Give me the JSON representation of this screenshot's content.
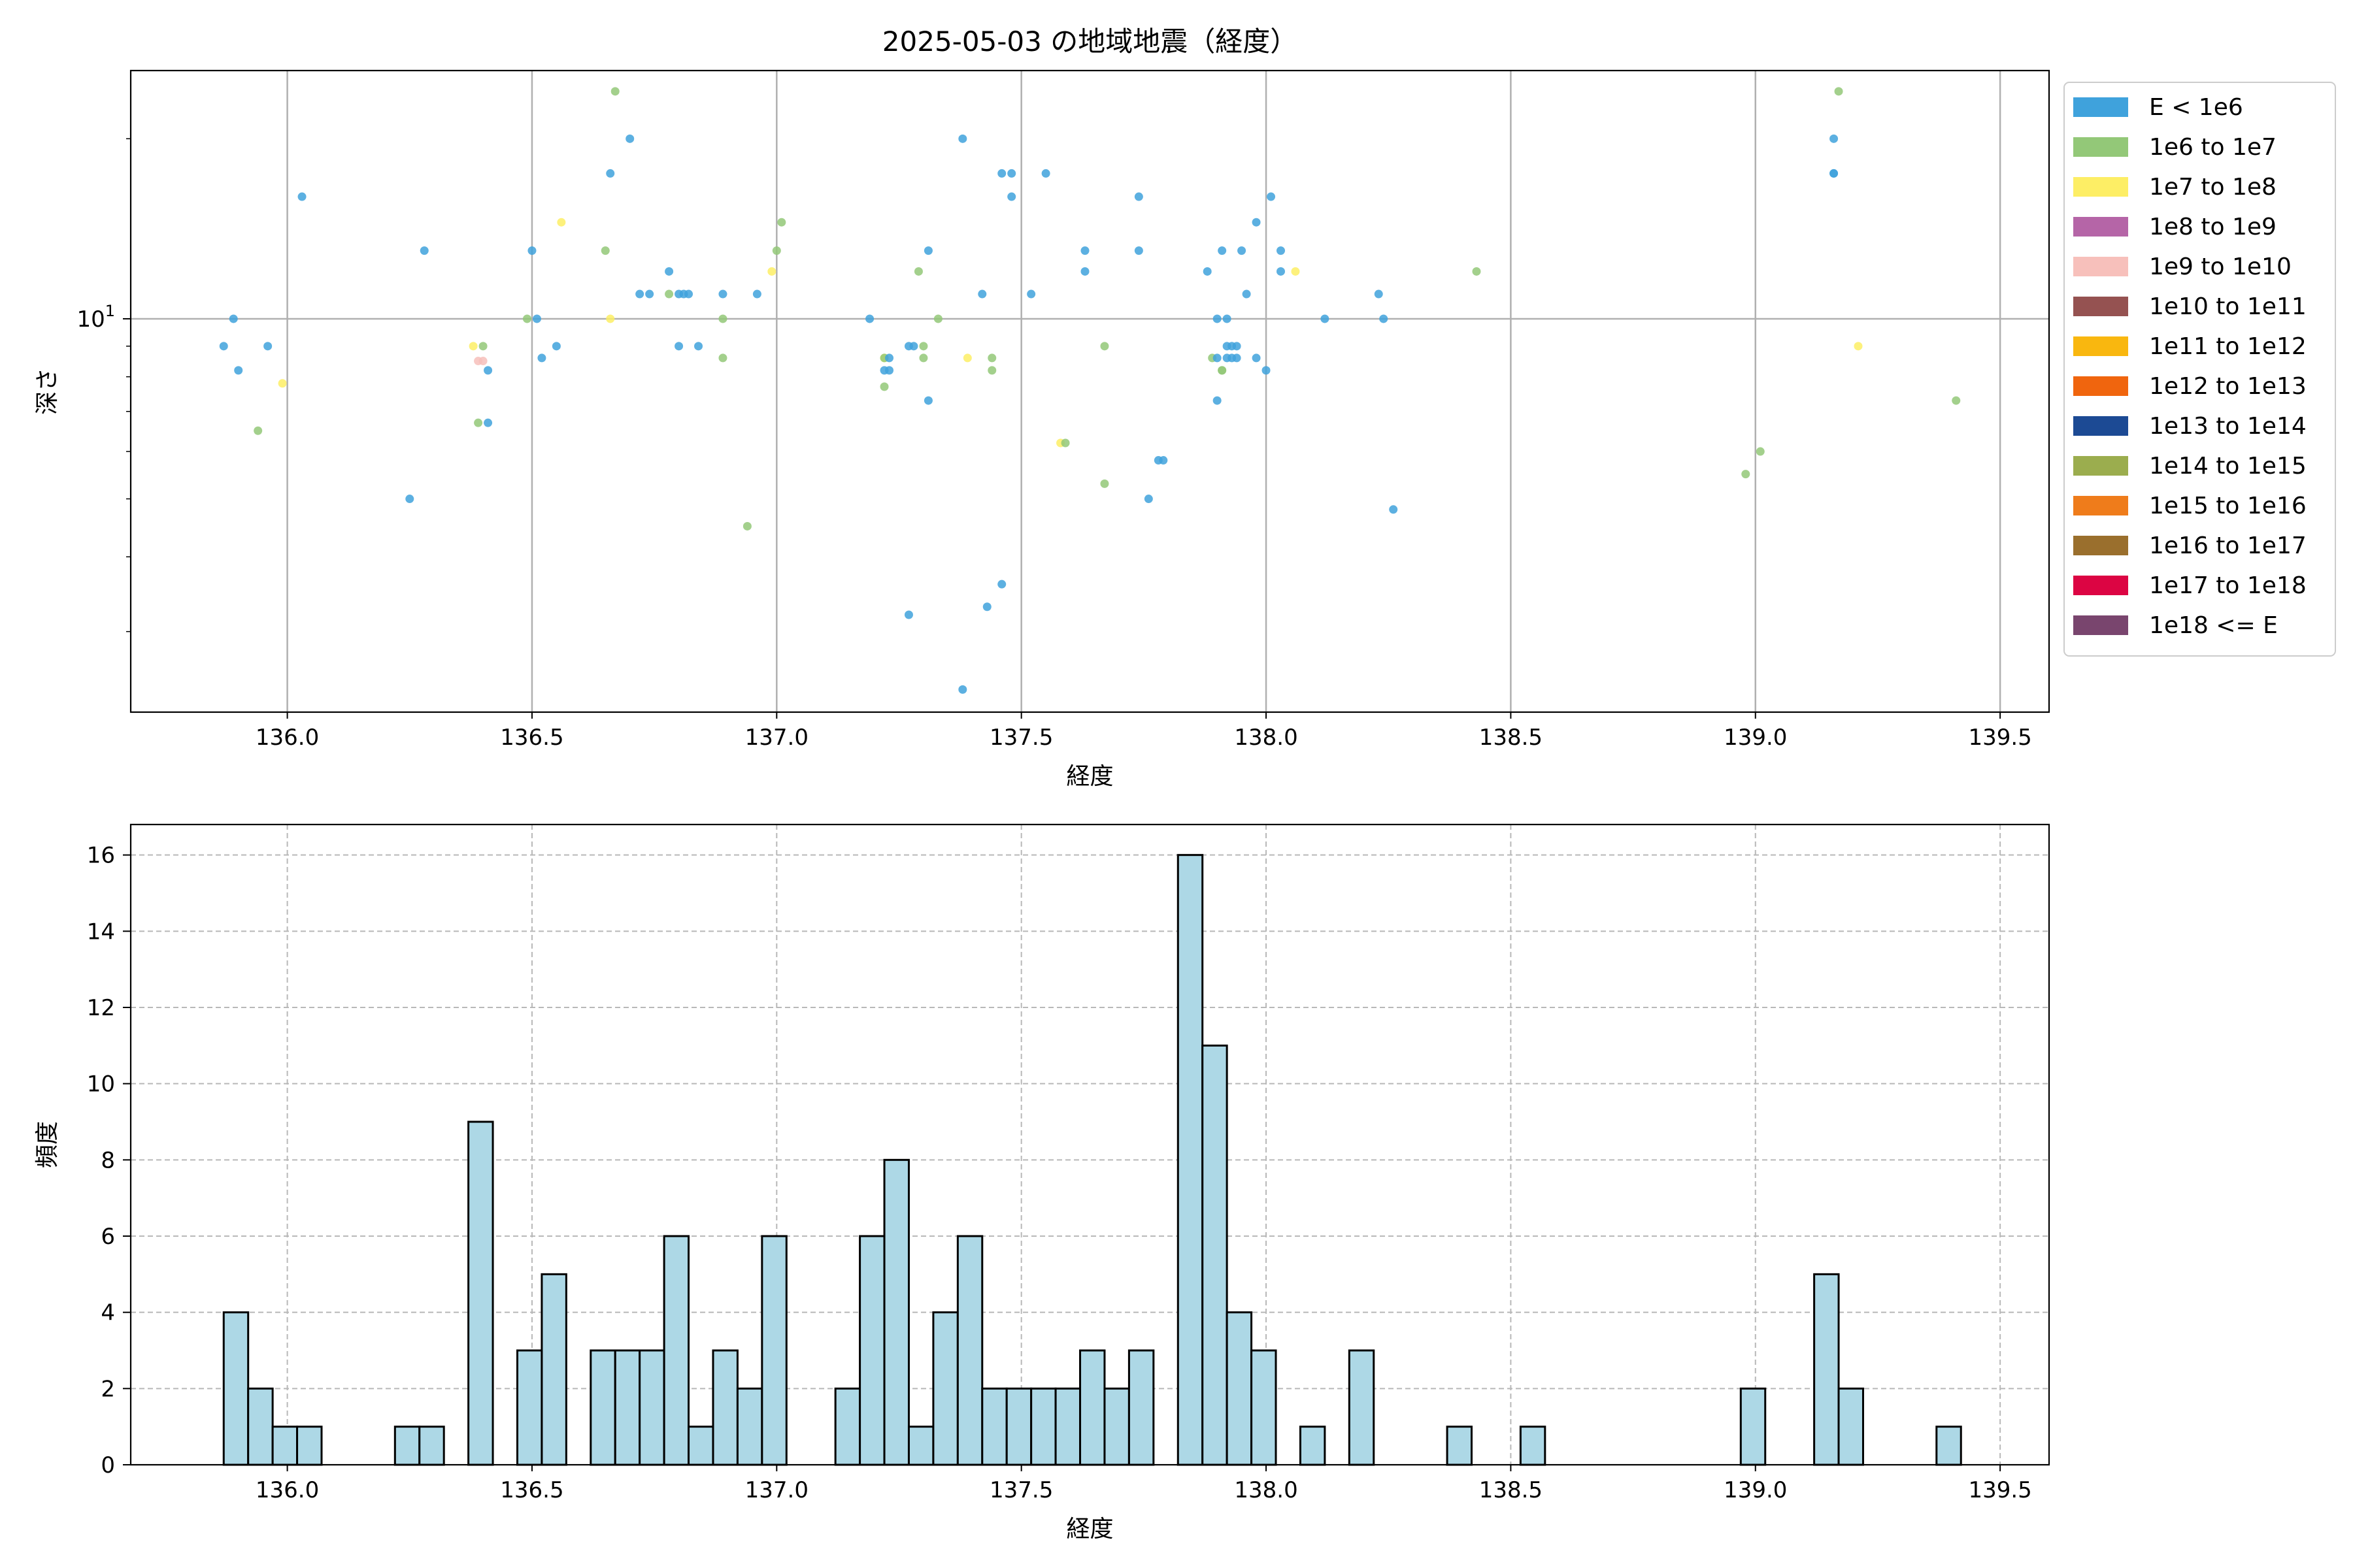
{
  "chart_data": [
    {
      "type": "scatter",
      "title": "2025-05-03 の地域地震（経度）",
      "xlabel": "経度",
      "ylabel": "深さ",
      "xlim": [
        135.68,
        139.6
      ],
      "ylim": [
        2.2,
        26.0
      ],
      "yscale": "log",
      "grid": true,
      "xticks": [
        "136.0",
        "136.5",
        "137.0",
        "137.5",
        "138.0",
        "138.5",
        "139.0",
        "139.5"
      ],
      "ytick_label": {
        "base": "10",
        "exp": "1"
      },
      "legend": {
        "placement": "outside-right",
        "entries": [
          {
            "label": "E < 1e6",
            "color": "#3fa2dc"
          },
          {
            "label": "1e6 to 1e7",
            "color": "#93c878"
          },
          {
            "label": "1e7 to 1e8",
            "color": "#fdee65"
          },
          {
            "label": "1e8 to 1e9",
            "color": "#b565a7"
          },
          {
            "label": "1e9 to 1e10",
            "color": "#f7c0bb"
          },
          {
            "label": "1e10 to 1e11",
            "color": "#955251"
          },
          {
            "label": "1e11 to 1e12",
            "color": "#f9b70f"
          },
          {
            "label": "1e12 to 1e13",
            "color": "#f0650e"
          },
          {
            "label": "1e13 to 1e14",
            "color": "#1c4a94"
          },
          {
            "label": "1e14 to 1e15",
            "color": "#9bad4e"
          },
          {
            "label": "1e15 to 1e16",
            "color": "#ef7c1b"
          },
          {
            "label": "1e16 to 1e17",
            "color": "#9a6f2d"
          },
          {
            "label": "1e17 to 1e18",
            "color": "#dc0543"
          },
          {
            "label": "1e18 <= E",
            "color": "#79456e"
          }
        ]
      },
      "points": [
        [
          135.87,
          9.0,
          0
        ],
        [
          135.89,
          10.0,
          0
        ],
        [
          135.9,
          8.2,
          0
        ],
        [
          135.94,
          6.5,
          1
        ],
        [
          135.96,
          9.0,
          0
        ],
        [
          135.99,
          7.8,
          2
        ],
        [
          136.03,
          16.0,
          0
        ],
        [
          136.25,
          5.0,
          0
        ],
        [
          136.28,
          13.0,
          0
        ],
        [
          136.38,
          9.0,
          2
        ],
        [
          136.39,
          8.5,
          4
        ],
        [
          136.39,
          6.7,
          1
        ],
        [
          136.4,
          9.0,
          1
        ],
        [
          136.41,
          6.7,
          0
        ],
        [
          136.41,
          8.2,
          0
        ],
        [
          136.4,
          8.5,
          4
        ],
        [
          136.49,
          10.0,
          1
        ],
        [
          136.5,
          13.0,
          0
        ],
        [
          136.51,
          10.0,
          0
        ],
        [
          136.52,
          8.6,
          0
        ],
        [
          136.55,
          9.0,
          0
        ],
        [
          136.56,
          14.5,
          2
        ],
        [
          136.65,
          13.0,
          1
        ],
        [
          136.66,
          17.5,
          0
        ],
        [
          136.66,
          10.0,
          2
        ],
        [
          136.67,
          24.0,
          1
        ],
        [
          136.7,
          20.0,
          0
        ],
        [
          136.72,
          11.0,
          0
        ],
        [
          136.74,
          11.0,
          0
        ],
        [
          136.78,
          11.0,
          1
        ],
        [
          136.78,
          12.0,
          0
        ],
        [
          136.8,
          11.0,
          0
        ],
        [
          136.81,
          11.0,
          0
        ],
        [
          136.8,
          9.0,
          0
        ],
        [
          136.82,
          11.0,
          0
        ],
        [
          136.84,
          9.0,
          0
        ],
        [
          136.89,
          8.6,
          1
        ],
        [
          136.89,
          10.0,
          1
        ],
        [
          136.89,
          11.0,
          0
        ],
        [
          136.94,
          4.5,
          1
        ],
        [
          136.96,
          11.0,
          0
        ],
        [
          136.99,
          12.0,
          2
        ],
        [
          137.0,
          13.0,
          1
        ],
        [
          137.01,
          14.5,
          1
        ],
        [
          137.19,
          10.0,
          0
        ],
        [
          137.22,
          8.6,
          2
        ],
        [
          137.22,
          8.6,
          1
        ],
        [
          137.22,
          8.2,
          0
        ],
        [
          137.22,
          7.7,
          1
        ],
        [
          137.23,
          8.6,
          0
        ],
        [
          137.23,
          8.2,
          0
        ],
        [
          137.27,
          3.2,
          0
        ],
        [
          137.27,
          9.0,
          0
        ],
        [
          137.28,
          9.0,
          0
        ],
        [
          137.29,
          12.0,
          1
        ],
        [
          137.3,
          9.0,
          1
        ],
        [
          137.3,
          8.6,
          1
        ],
        [
          137.31,
          13.0,
          0
        ],
        [
          137.31,
          7.3,
          0
        ],
        [
          137.33,
          10.0,
          1
        ],
        [
          137.38,
          20.0,
          0
        ],
        [
          137.38,
          2.4,
          0
        ],
        [
          137.39,
          8.6,
          2
        ],
        [
          137.42,
          11.0,
          0
        ],
        [
          137.43,
          3.3,
          0
        ],
        [
          137.44,
          8.6,
          1
        ],
        [
          137.44,
          8.2,
          1
        ],
        [
          137.46,
          3.6,
          0
        ],
        [
          137.46,
          17.5,
          0
        ],
        [
          137.48,
          17.5,
          0
        ],
        [
          137.48,
          16.0,
          0
        ],
        [
          137.52,
          11.0,
          0
        ],
        [
          137.55,
          17.5,
          0
        ],
        [
          137.58,
          6.2,
          2
        ],
        [
          137.59,
          6.2,
          1
        ],
        [
          137.63,
          13.0,
          0
        ],
        [
          137.63,
          12.0,
          0
        ],
        [
          137.67,
          9.0,
          1
        ],
        [
          137.67,
          5.3,
          1
        ],
        [
          137.74,
          16.0,
          0
        ],
        [
          137.74,
          13.0,
          0
        ],
        [
          137.76,
          5.0,
          0
        ],
        [
          137.78,
          5.8,
          0
        ],
        [
          137.79,
          5.8,
          0
        ],
        [
          137.88,
          12.0,
          0
        ],
        [
          137.89,
          8.6,
          1
        ],
        [
          137.9,
          10.0,
          0
        ],
        [
          137.9,
          8.6,
          0
        ],
        [
          137.91,
          13.0,
          0
        ],
        [
          137.91,
          8.2,
          1
        ],
        [
          137.9,
          7.3,
          0
        ],
        [
          137.91,
          8.2,
          1
        ],
        [
          137.92,
          10.0,
          0
        ],
        [
          137.92,
          9.0,
          0
        ],
        [
          137.93,
          9.0,
          0
        ],
        [
          137.93,
          8.6,
          0
        ],
        [
          137.92,
          8.6,
          0
        ],
        [
          137.94,
          8.6,
          0
        ],
        [
          137.94,
          9.0,
          0
        ],
        [
          137.95,
          13.0,
          0
        ],
        [
          137.96,
          11.0,
          0
        ],
        [
          137.98,
          14.5,
          0
        ],
        [
          137.98,
          8.6,
          0
        ],
        [
          138.0,
          8.2,
          0
        ],
        [
          138.01,
          16.0,
          0
        ],
        [
          138.03,
          12.0,
          0
        ],
        [
          138.03,
          13.0,
          0
        ],
        [
          138.06,
          12.0,
          2
        ],
        [
          138.12,
          10.0,
          0
        ],
        [
          138.23,
          11.0,
          0
        ],
        [
          138.24,
          10.0,
          0
        ],
        [
          138.26,
          4.8,
          0
        ],
        [
          138.43,
          12.0,
          1
        ],
        [
          138.98,
          5.5,
          1
        ],
        [
          139.01,
          6.0,
          1
        ],
        [
          139.16,
          20.0,
          0
        ],
        [
          139.16,
          17.5,
          0
        ],
        [
          139.16,
          17.5,
          0
        ],
        [
          139.17,
          24.0,
          1
        ],
        [
          139.21,
          9.0,
          2
        ],
        [
          139.41,
          7.3,
          1
        ]
      ]
    },
    {
      "type": "bar",
      "subtype": "histogram",
      "title": "",
      "xlabel": "経度",
      "ylabel": "頻度",
      "xlim": [
        135.68,
        139.6
      ],
      "ylim": [
        0,
        16.8
      ],
      "grid": true,
      "bar_color": "#add8e6",
      "edge_color": "#000000",
      "xticks": [
        "136.0",
        "136.5",
        "137.0",
        "137.5",
        "138.0",
        "138.5",
        "139.0",
        "139.5"
      ],
      "yticks": [
        "0",
        "2",
        "4",
        "6",
        "8",
        "10",
        "12",
        "14",
        "16"
      ],
      "bin_start": 135.87,
      "bin_width": 0.05,
      "counts": [
        4,
        2,
        1,
        1,
        0,
        0,
        0,
        1,
        1,
        0,
        9,
        0,
        3,
        5,
        0,
        3,
        3,
        3,
        6,
        1,
        3,
        2,
        6,
        0,
        0,
        2,
        6,
        8,
        1,
        4,
        6,
        2,
        2,
        2,
        2,
        3,
        2,
        3,
        0,
        16,
        11,
        4,
        3,
        0,
        1,
        0,
        3,
        0,
        0,
        0,
        1,
        0,
        0,
        1,
        0,
        0,
        0,
        0,
        0,
        0,
        0,
        0,
        2,
        0,
        0,
        5,
        2,
        0,
        0,
        0,
        1
      ]
    }
  ]
}
